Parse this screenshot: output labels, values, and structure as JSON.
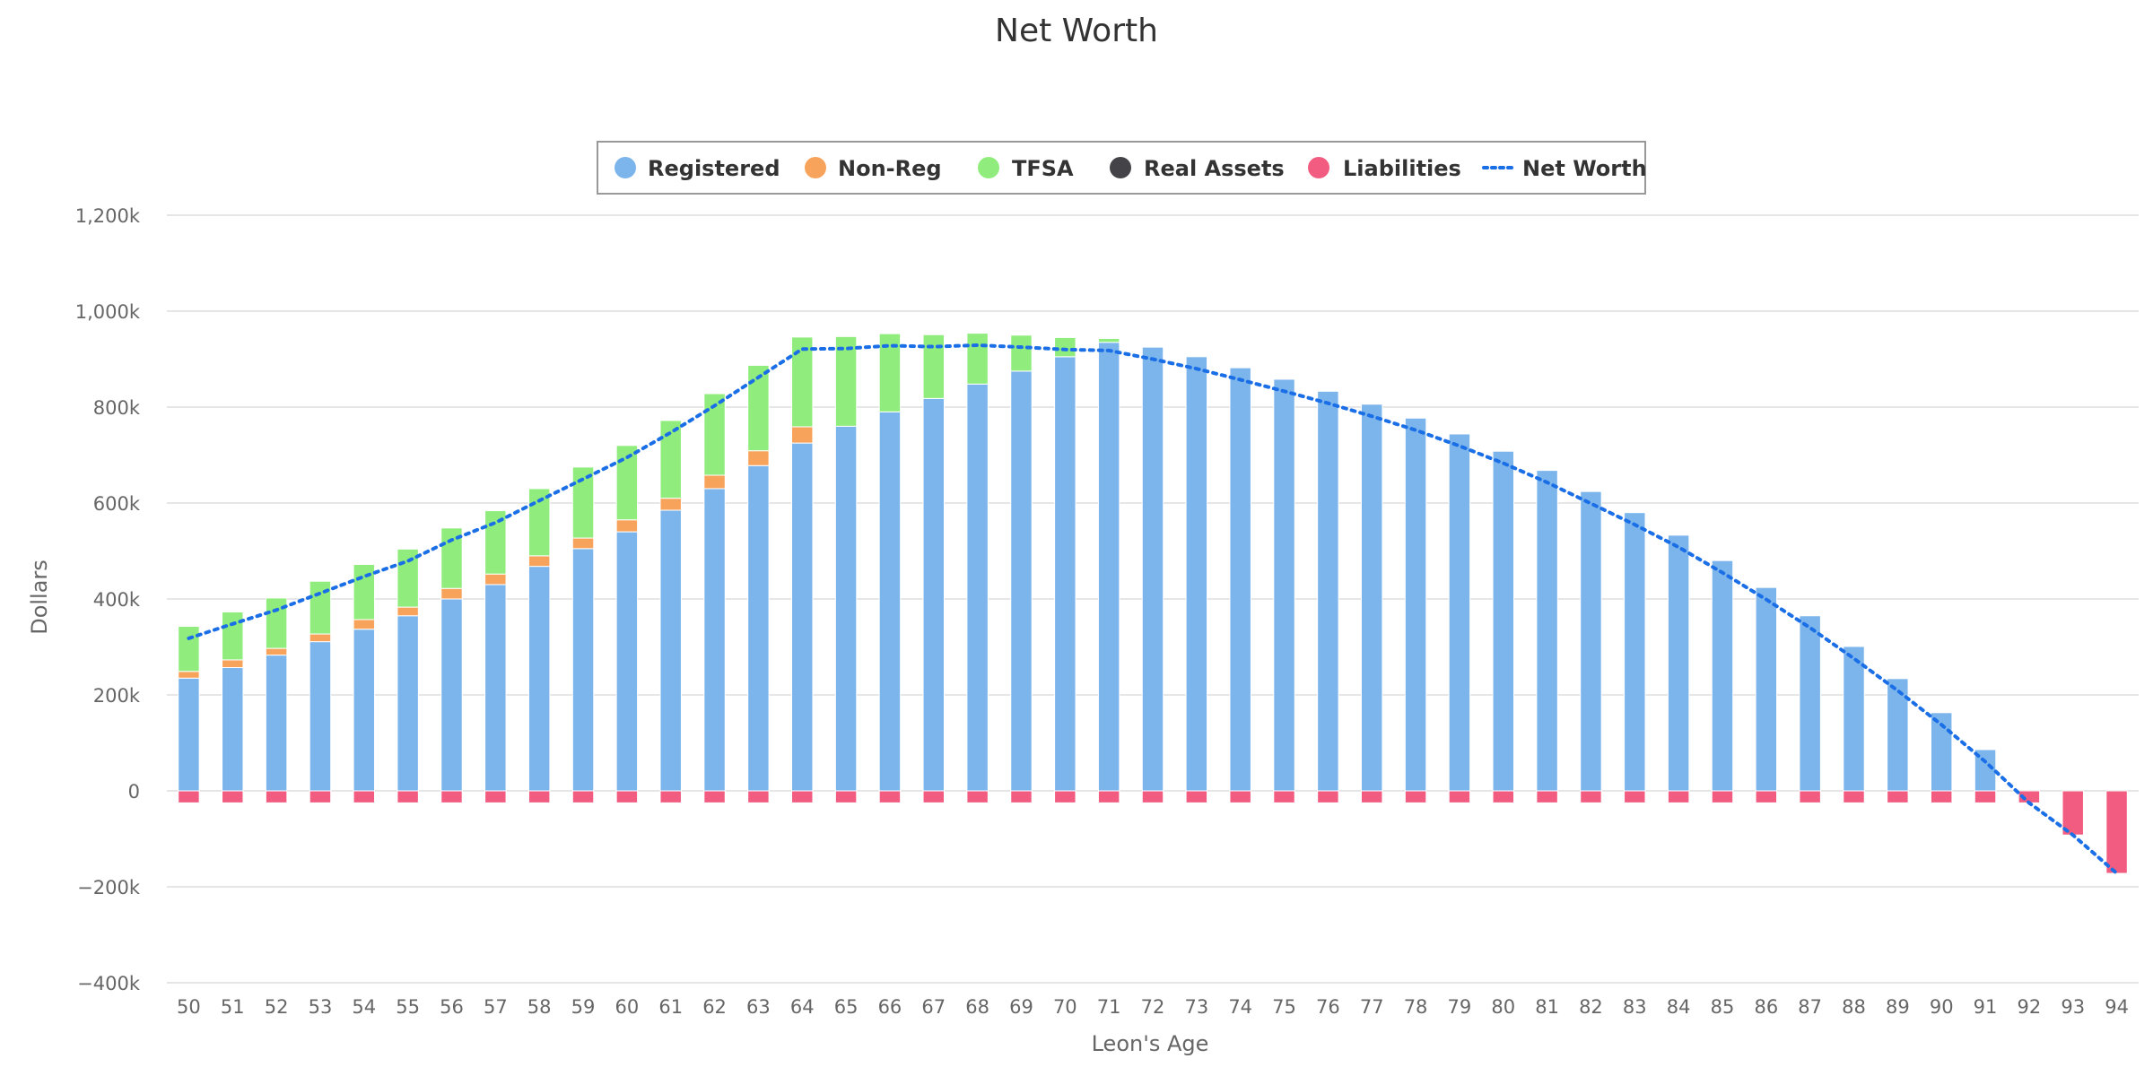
{
  "chart_data": {
    "type": "bar",
    "stacked": true,
    "title": "Net Worth",
    "xlabel": "Leon's Age",
    "ylabel": "Dollars",
    "ylim": [
      -400000,
      1200000
    ],
    "y_ticks": [
      {
        "value": 1200000,
        "label": "1,200k"
      },
      {
        "value": 1000000,
        "label": "1,000k"
      },
      {
        "value": 800000,
        "label": "800k"
      },
      {
        "value": 600000,
        "label": "600k"
      },
      {
        "value": 400000,
        "label": "400k"
      },
      {
        "value": 200000,
        "label": "200k"
      },
      {
        "value": 0,
        "label": "0"
      },
      {
        "value": -200000,
        "label": "−200k"
      },
      {
        "value": -400000,
        "label": "−400k"
      }
    ],
    "grid": true,
    "legend_position": "top-center",
    "categories": [
      "50",
      "51",
      "52",
      "53",
      "54",
      "55",
      "56",
      "57",
      "58",
      "59",
      "60",
      "61",
      "62",
      "63",
      "64",
      "65",
      "66",
      "67",
      "68",
      "69",
      "70",
      "71",
      "72",
      "73",
      "74",
      "75",
      "76",
      "77",
      "78",
      "79",
      "80",
      "81",
      "82",
      "83",
      "84",
      "85",
      "86",
      "87",
      "88",
      "89",
      "90",
      "91",
      "92",
      "93",
      "94"
    ],
    "series": [
      {
        "name": "Registered",
        "kind": "bar",
        "color": "#7cb5ec",
        "values": [
          235000,
          257000,
          283000,
          311000,
          337000,
          365000,
          400000,
          430000,
          468000,
          505000,
          540000,
          585000,
          630000,
          678000,
          725000,
          760000,
          790000,
          818000,
          848000,
          875000,
          905000,
          935000,
          925000,
          905000,
          882000,
          858000,
          833000,
          806000,
          777000,
          744000,
          708000,
          668000,
          624000,
          580000,
          533000,
          480000,
          424000,
          365000,
          301000,
          234000,
          163000,
          86000,
          0,
          0,
          0
        ]
      },
      {
        "name": "Non-Reg",
        "kind": "bar",
        "color": "#f7a35c",
        "values": [
          14000,
          16000,
          14000,
          16000,
          20000,
          18000,
          22000,
          22000,
          22000,
          22000,
          25000,
          25000,
          28000,
          31000,
          34000,
          0,
          0,
          0,
          0,
          0,
          0,
          0,
          0,
          0,
          0,
          0,
          0,
          0,
          0,
          0,
          0,
          0,
          0,
          0,
          0,
          0,
          0,
          0,
          0,
          0,
          0,
          0,
          0,
          0,
          0
        ]
      },
      {
        "name": "TFSA",
        "kind": "bar",
        "color": "#90ed7d",
        "values": [
          94000,
          100000,
          105000,
          110000,
          115000,
          121000,
          126000,
          132000,
          140000,
          148000,
          155000,
          162000,
          170000,
          178000,
          187000,
          187000,
          163000,
          133000,
          106000,
          75000,
          40000,
          8000,
          0,
          0,
          0,
          0,
          0,
          0,
          0,
          0,
          0,
          0,
          0,
          0,
          0,
          0,
          0,
          0,
          0,
          0,
          0,
          0,
          0,
          0,
          0
        ]
      },
      {
        "name": "Real Assets",
        "kind": "bar",
        "color": "#434348",
        "values": [
          0,
          0,
          0,
          0,
          0,
          0,
          0,
          0,
          0,
          0,
          0,
          0,
          0,
          0,
          0,
          0,
          0,
          0,
          0,
          0,
          0,
          0,
          0,
          0,
          0,
          0,
          0,
          0,
          0,
          0,
          0,
          0,
          0,
          0,
          0,
          0,
          0,
          0,
          0,
          0,
          0,
          0,
          0,
          0,
          0
        ]
      },
      {
        "name": "Liabilities",
        "kind": "bar",
        "color": "#f15c80",
        "values": [
          -25000,
          -25000,
          -25000,
          -25000,
          -25000,
          -25000,
          -25000,
          -25000,
          -25000,
          -25000,
          -25000,
          -25000,
          -25000,
          -25000,
          -25000,
          -25000,
          -25000,
          -25000,
          -25000,
          -25000,
          -25000,
          -25000,
          -25000,
          -25000,
          -25000,
          -25000,
          -25000,
          -25000,
          -25000,
          -25000,
          -25000,
          -25000,
          -25000,
          -25000,
          -25000,
          -25000,
          -25000,
          -25000,
          -25000,
          -25000,
          -25000,
          -25000,
          -25000,
          -92000,
          -172000
        ]
      },
      {
        "name": "Net Worth",
        "kind": "line",
        "dash": "dotted",
        "color": "#1a6ee6",
        "values": [
          318000,
          348000,
          377000,
          412000,
          447000,
          479000,
          523000,
          559000,
          605000,
          650000,
          695000,
          747000,
          803000,
          862000,
          921000,
          922000,
          928000,
          926000,
          929000,
          925000,
          920000,
          918000,
          900000,
          880000,
          857000,
          833000,
          808000,
          781000,
          752000,
          719000,
          683000,
          643000,
          599000,
          555000,
          508000,
          455000,
          399000,
          340000,
          276000,
          209000,
          138000,
          61000,
          -25000,
          -92000,
          -172000
        ]
      }
    ]
  }
}
